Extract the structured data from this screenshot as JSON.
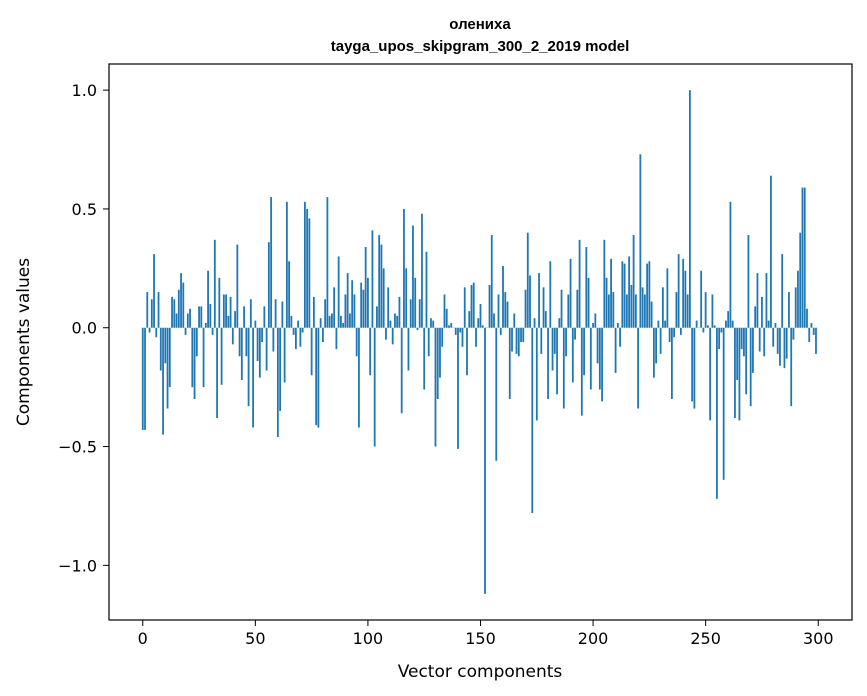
{
  "chart_data": {
    "type": "bar",
    "title_line1": "олениха",
    "title_line2": "tayga_upos_skipgram_300_2_2019 model",
    "xlabel": "Vector components",
    "ylabel": "Components values",
    "xlim": [
      -15,
      315
    ],
    "ylim": [
      -1.23,
      1.11
    ],
    "xticks": [
      0,
      50,
      100,
      150,
      200,
      250,
      300
    ],
    "xtick_labels": [
      "0",
      "50",
      "100",
      "150",
      "200",
      "250",
      "300"
    ],
    "yticks": [
      -1.0,
      -0.5,
      0.0,
      0.5,
      1.0
    ],
    "ytick_labels": [
      "−1.0",
      "−0.5",
      "0.0",
      "0.5",
      "1.0"
    ],
    "grid": false,
    "bar_color": "#1f77b4",
    "values": [
      -0.43,
      -0.43,
      0.15,
      -0.02,
      0.12,
      0.31,
      -0.04,
      0.15,
      -0.18,
      -0.45,
      -0.15,
      -0.34,
      -0.25,
      0.13,
      0.12,
      0.06,
      0.16,
      0.23,
      0.19,
      -0.03,
      0.06,
      0.08,
      -0.25,
      -0.3,
      -0.12,
      0.09,
      0.09,
      -0.25,
      0.02,
      0.24,
      0.1,
      -0.03,
      0.37,
      -0.38,
      0.21,
      -0.24,
      0.14,
      0.14,
      0.05,
      0.13,
      -0.07,
      0.07,
      0.35,
      -0.12,
      -0.22,
      0.09,
      -0.12,
      -0.33,
      0.12,
      -0.42,
      0.03,
      -0.14,
      -0.21,
      -0.06,
      0.09,
      -0.18,
      0.36,
      0.55,
      -0.1,
      0.12,
      -0.46,
      -0.35,
      0.11,
      -0.23,
      0.53,
      0.28,
      0.05,
      -0.03,
      -0.09,
      0.03,
      -0.08,
      -0.02,
      0.53,
      0.5,
      0.46,
      -0.2,
      0.13,
      -0.41,
      -0.42,
      0.04,
      -0.06,
      0.12,
      0.55,
      0.05,
      0.06,
      0.17,
      -0.09,
      0.3,
      0.05,
      0.02,
      0.14,
      0.23,
      0.06,
      0.2,
      0.14,
      -0.12,
      -0.42,
      0.19,
      0.16,
      0.34,
      0.21,
      -0.2,
      0.41,
      -0.5,
      0.09,
      0.39,
      0.35,
      0.25,
      -0.05,
      0.17,
      0.03,
      -0.07,
      0.06,
      0.05,
      0.13,
      -0.36,
      0.5,
      0.25,
      -0.18,
      0.12,
      0.43,
      0.21,
      -0.01,
      0.12,
      0.48,
      -0.26,
      0.32,
      -0.12,
      0.04,
      0.03,
      -0.5,
      -0.3,
      -0.21,
      -0.08,
      0.14,
      0.08,
      0.01,
      0.02,
      0.0,
      -0.03,
      -0.51,
      -0.02,
      -0.08,
      0.17,
      -0.2,
      0.07,
      0.18,
      0.19,
      -0.08,
      0.04,
      0.1,
      0.01,
      -1.12,
      0.0,
      0.18,
      0.39,
      0.06,
      -0.56,
      0.14,
      -0.03,
      0.26,
      0.15,
      0.11,
      -0.3,
      -0.1,
      0.06,
      -0.11,
      -0.12,
      -0.06,
      -0.06,
      0.16,
      0.4,
      0.22,
      -0.78,
      0.04,
      -0.39,
      0.23,
      -0.11,
      0.17,
      0.07,
      -0.3,
      0.28,
      -0.18,
      -0.11,
      -0.28,
      0.04,
      0.16,
      -0.34,
      -0.12,
      0.14,
      0.29,
      -0.23,
      -0.05,
      0.16,
      0.37,
      -0.37,
      -0.2,
      0.34,
      0.21,
      -0.26,
      0.02,
      0.06,
      -0.15,
      -0.26,
      -0.31,
      0.37,
      0.21,
      0.14,
      0.29,
      0.15,
      -0.19,
      0.02,
      -0.08,
      0.28,
      0.27,
      0.14,
      0.3,
      0.18,
      0.39,
      0.14,
      -0.34,
      0.73,
      0.17,
      0.14,
      0.27,
      0.28,
      0.11,
      -0.21,
      -0.15,
      0.03,
      -0.11,
      0.17,
      0.03,
      0.25,
      -0.06,
      -0.3,
      -0.04,
      0.15,
      0.31,
      -0.03,
      0.29,
      0.24,
      0.14,
      1.0,
      -0.31,
      -0.34,
      0.03,
      0.0,
      0.24,
      -0.02,
      0.15,
      0.01,
      -0.39,
      0.14,
      0.01,
      -0.72,
      -0.09,
      -0.02,
      -0.64,
      0.03,
      0.07,
      0.53,
      0.03,
      -0.38,
      -0.22,
      -0.39,
      -0.09,
      -0.12,
      -0.28,
      0.39,
      -0.33,
      -0.19,
      0.09,
      0.23,
      -0.1,
      0.13,
      -0.12,
      0.23,
      0.03,
      0.64,
      -0.08,
      0.02,
      -0.11,
      -0.16,
      0.31,
      -0.17,
      -0.13,
      0.15,
      -0.33,
      -0.05,
      0.17,
      0.24,
      0.4,
      0.59,
      0.59,
      0.08,
      -0.06,
      0.02,
      -0.03,
      -0.11
    ]
  }
}
